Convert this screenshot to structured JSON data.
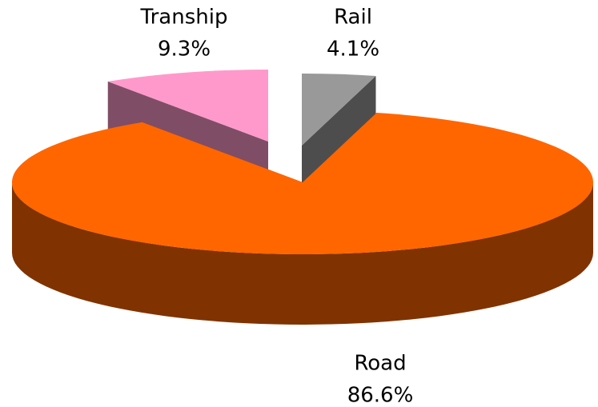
{
  "chart_data": {
    "type": "pie",
    "categories": [
      "Rail",
      "Road",
      "Tranship"
    ],
    "values": [
      4.1,
      86.6,
      9.3
    ],
    "value_labels": [
      "4.1%",
      "86.6%",
      "9.3%"
    ],
    "colors": [
      "#999999",
      "#ff6600",
      "#ff99cc"
    ],
    "three_d": true
  }
}
